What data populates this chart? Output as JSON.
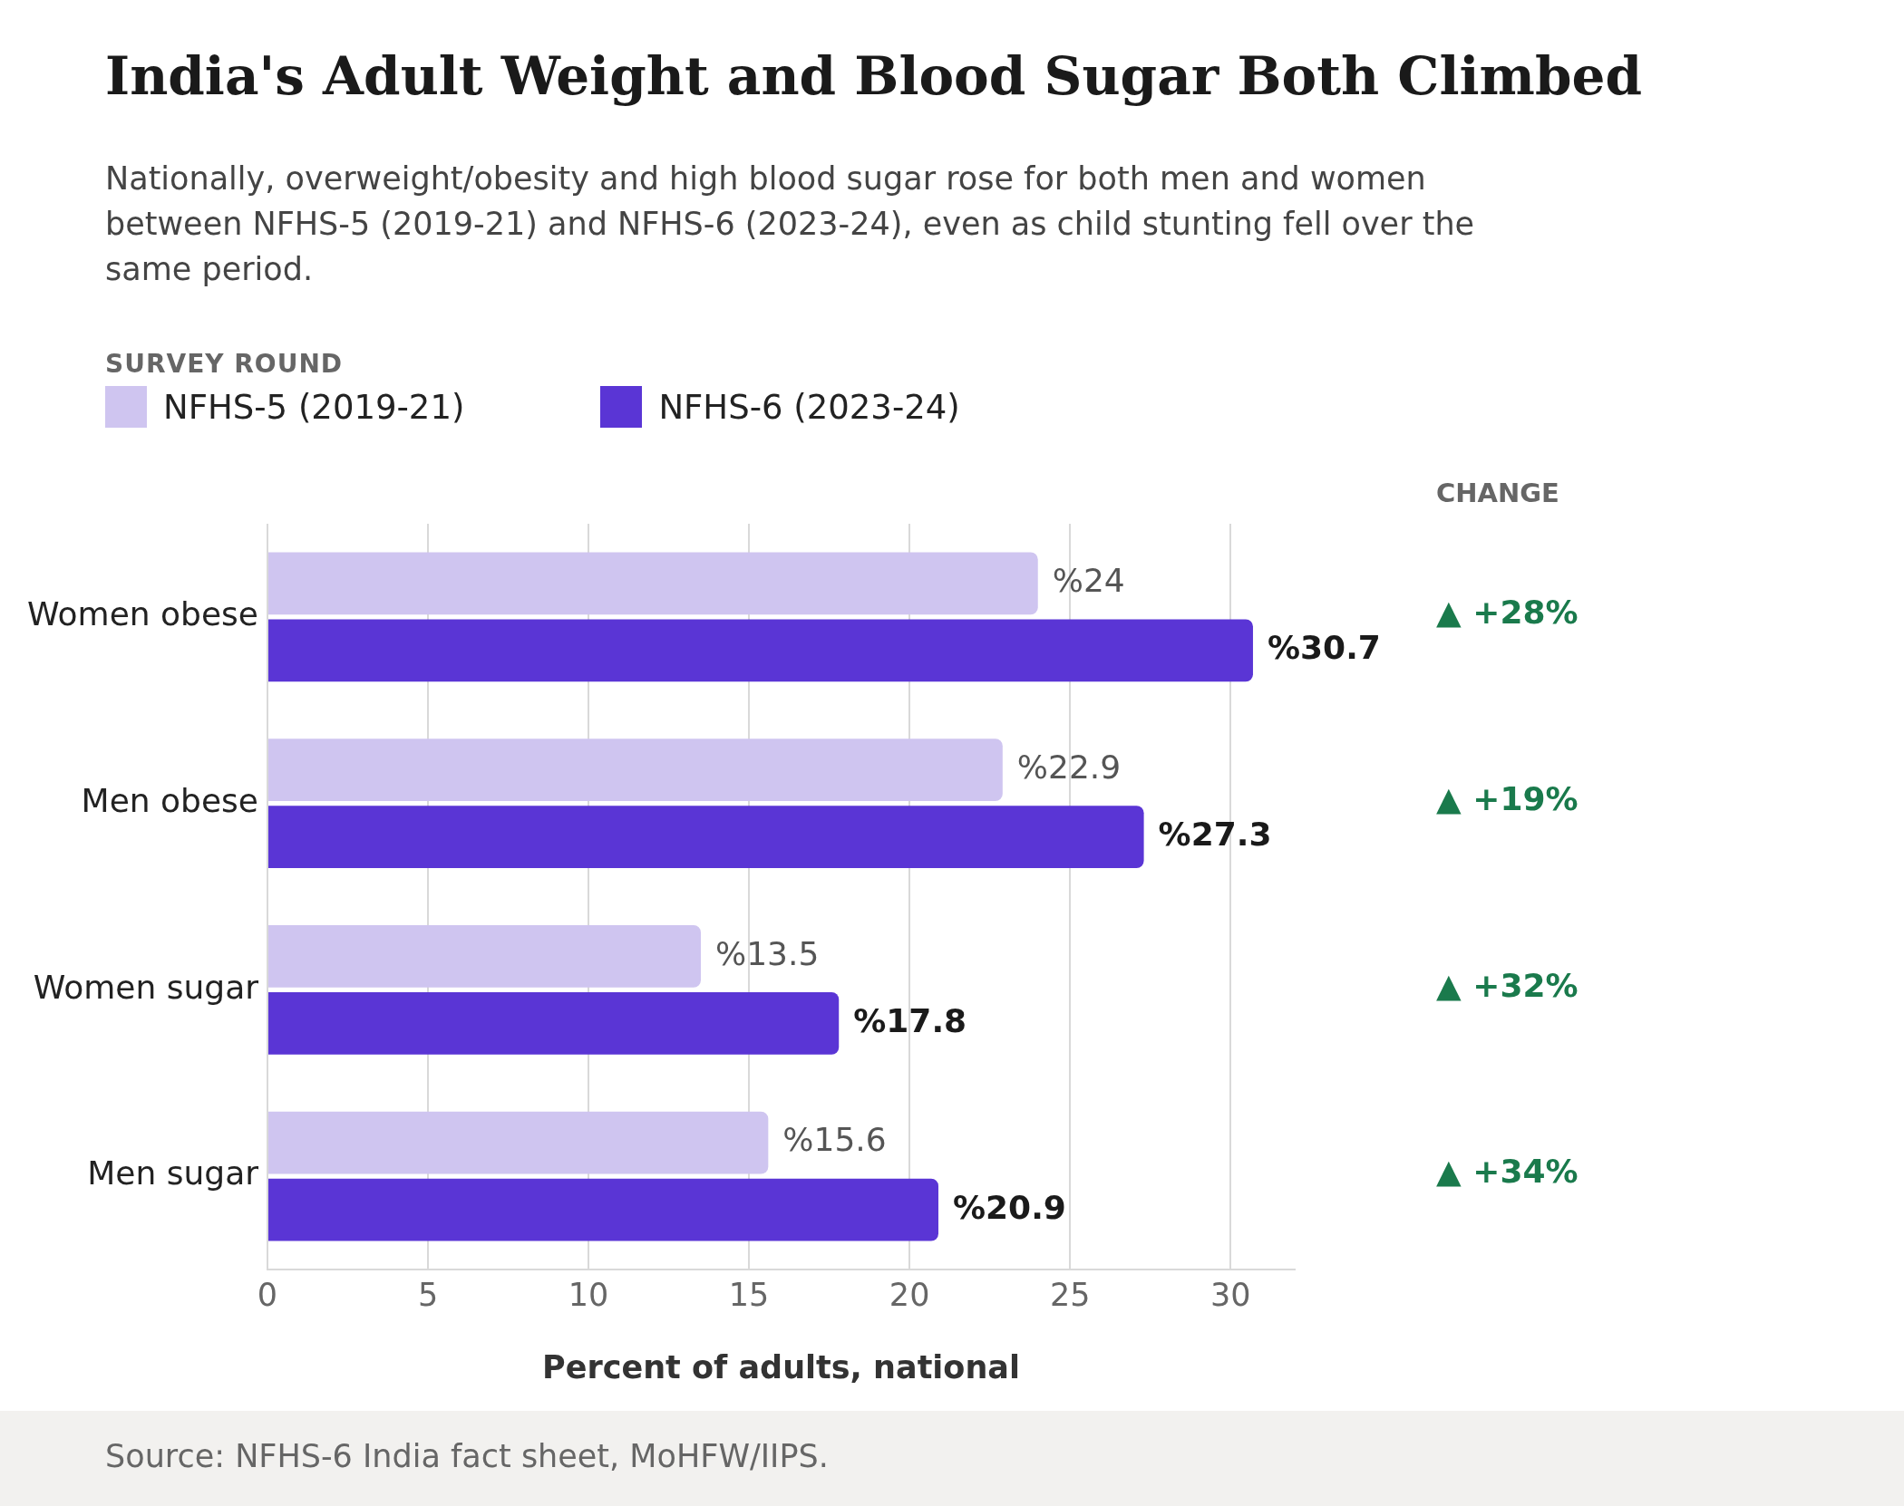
{
  "chart_data": {
    "type": "bar",
    "orientation": "horizontal",
    "title": "India's Adult Weight and Blood Sugar Both Climbed",
    "subtitle": "Nationally, overweight/obesity and high blood sugar rose for both men and women between NFHS-5 (2019-21) and NFHS-6 (2023-24), even as child stunting fell over the same period.",
    "categories": [
      "Women obese",
      "Men obese",
      "Women sugar",
      "Men sugar"
    ],
    "series": [
      {
        "name": "NFHS-5 (2019-21)",
        "color": "#cfc5f0",
        "values": [
          24,
          22.9,
          13.5,
          15.6
        ],
        "value_labels": [
          "%24",
          "%22.9",
          "%13.5",
          "%15.6"
        ]
      },
      {
        "name": "NFHS-6 (2023-24)",
        "color": "#5a35d5",
        "values": [
          30.7,
          27.3,
          17.8,
          20.9
        ],
        "value_labels": [
          "%30.7",
          "%27.3",
          "%17.8",
          "%20.9"
        ]
      }
    ],
    "legend_title": "SURVEY ROUND",
    "legend": "top left",
    "xlabel": "Percent of adults, national",
    "xlim": [
      0,
      32
    ],
    "xticks": [
      0,
      5,
      10,
      15,
      20,
      25,
      30
    ],
    "grid": "x",
    "annotations": [
      "CHANGE",
      "▲ +28%",
      "▲ +19%",
      "▲ +32%",
      "▲ +34%",
      "Source: NFHS-6 India fact sheet, MoHFW/IIPS."
    ]
  }
}
